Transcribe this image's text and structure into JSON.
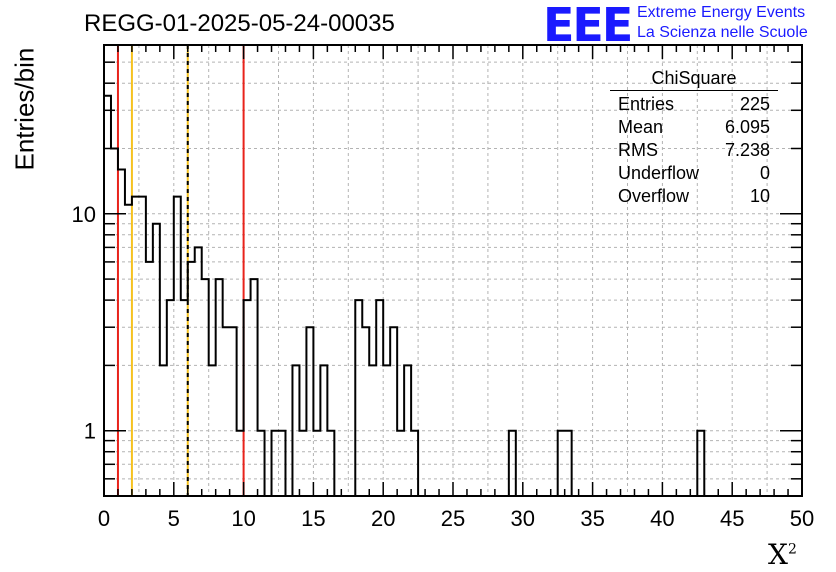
{
  "header": {
    "title": "REGG-01-2025-05-24-00035",
    "logo_text": "EEE",
    "logo_line1": "Extreme Energy Events",
    "logo_line2": "La Scienza nelle Scuole"
  },
  "stats_box": {
    "name": "ChiSquare",
    "rows": [
      {
        "label": "Entries",
        "value": "225"
      },
      {
        "label": "Mean",
        "value": "6.095"
      },
      {
        "label": "RMS",
        "value": "7.238"
      },
      {
        "label": "Underflow",
        "value": "0"
      },
      {
        "label": "Overflow",
        "value": "10"
      }
    ]
  },
  "chart_data": {
    "type": "bar",
    "title": "REGG-01-2025-05-24-00035",
    "xlabel": "X",
    "xlabel_sup": "2",
    "ylabel": "Entries/bin",
    "xlim": [
      0,
      50
    ],
    "ylim": [
      0.5,
      60
    ],
    "yscale": "log",
    "grid": true,
    "bin_width": 0.5,
    "bin_counts": [
      35,
      20,
      16,
      11,
      12,
      12,
      6,
      9,
      2,
      4,
      12,
      4,
      6,
      7,
      5,
      2,
      5,
      3,
      3,
      1,
      4,
      5,
      1,
      0,
      1,
      1,
      0,
      2,
      1,
      3,
      1,
      2,
      1,
      0,
      0,
      0,
      4,
      3,
      2,
      4,
      2,
      3,
      1,
      2,
      1,
      0,
      0,
      0,
      0,
      0,
      0,
      0,
      0,
      0,
      0,
      0,
      0,
      0,
      1,
      0,
      0,
      0,
      0,
      0,
      0,
      1,
      1,
      0,
      0,
      0,
      0,
      0,
      0,
      0,
      0,
      0,
      0,
      0,
      0,
      0,
      0,
      0,
      0,
      0,
      0,
      1,
      0,
      0,
      0,
      0,
      0,
      0,
      0,
      0,
      0,
      0,
      0,
      0,
      0,
      0
    ],
    "x_ticks": [
      "0",
      "5",
      "10",
      "15",
      "20",
      "25",
      "30",
      "35",
      "40",
      "45",
      "50"
    ],
    "y_ticks": [
      {
        "value": 1,
        "label": "1"
      },
      {
        "value": 10,
        "label": "10"
      }
    ],
    "vertical_lines": [
      {
        "x": 1,
        "color": "#e8231b",
        "style": "solid"
      },
      {
        "x": 2,
        "color": "#f5c21f",
        "style": "solid"
      },
      {
        "x": 6,
        "color": "#f5c21f",
        "style": "dashed"
      },
      {
        "x": 10,
        "color": "#e8231b",
        "style": "solid"
      }
    ]
  }
}
